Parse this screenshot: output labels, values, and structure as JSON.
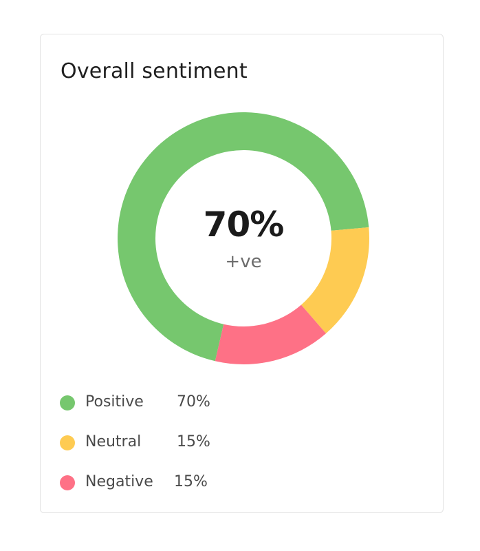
{
  "card": {
    "title": "Overall sentiment"
  },
  "chart_data": {
    "type": "pie",
    "title": "Overall sentiment",
    "center_value": "70%",
    "center_label": "+ve",
    "series": [
      {
        "name": "Positive",
        "value": 70,
        "label": "70%",
        "color": "#76c76e"
      },
      {
        "name": "Neutral",
        "value": 15,
        "label": "15%",
        "color": "#fecb52"
      },
      {
        "name": "Negative",
        "value": 15,
        "label": "15%",
        "color": "#fe7186"
      }
    ],
    "legend_position": "bottom-left"
  }
}
